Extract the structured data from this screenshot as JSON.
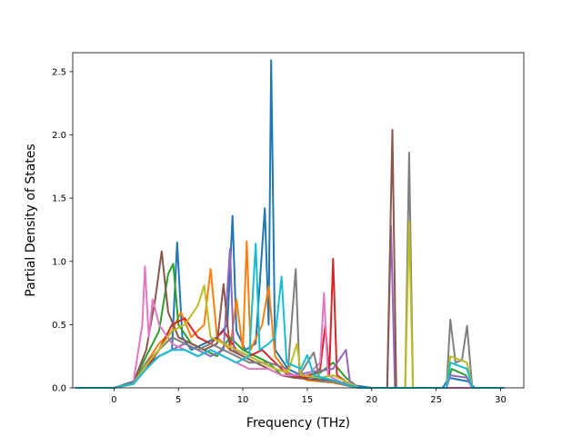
{
  "chart_data": {
    "type": "line",
    "title": "",
    "xlabel": "Frequency (THz)",
    "ylabel": "Partial Density of States",
    "xlim": [
      -3.2,
      31.8
    ],
    "ylim": [
      0,
      2.65
    ],
    "xticks": [
      0,
      5,
      10,
      15,
      20,
      25,
      30
    ],
    "yticks": [
      0.0,
      0.5,
      1.0,
      1.5,
      2.0,
      2.5
    ],
    "xtick_labels": [
      "0",
      "5",
      "10",
      "15",
      "20",
      "25",
      "30"
    ],
    "ytick_labels": [
      "0.0",
      "0.5",
      "1.0",
      "1.5",
      "2.0",
      "2.5"
    ],
    "grid": false,
    "legend": "none",
    "series": [
      {
        "color": "#1f77b4",
        "points": [
          [
            -3,
            0
          ],
          [
            0,
            0
          ],
          [
            1.5,
            0.05
          ],
          [
            2.5,
            0.18
          ],
          [
            3.5,
            0.25
          ],
          [
            4.5,
            0.3
          ],
          [
            4.9,
            1.15
          ],
          [
            5.3,
            0.4
          ],
          [
            6,
            0.3
          ],
          [
            7,
            0.35
          ],
          [
            8,
            0.4
          ],
          [
            8.8,
            0.5
          ],
          [
            9.2,
            1.36
          ],
          [
            9.5,
            0.45
          ],
          [
            10.2,
            0.3
          ],
          [
            11,
            0.35
          ],
          [
            11.7,
            1.42
          ],
          [
            12.0,
            0.5
          ],
          [
            12.2,
            2.59
          ],
          [
            12.5,
            0.3
          ],
          [
            13.5,
            0.15
          ],
          [
            14.5,
            0.1
          ],
          [
            15.5,
            0.08
          ],
          [
            17,
            0.05
          ],
          [
            18,
            0.03
          ],
          [
            20,
            0
          ],
          [
            25.5,
            0
          ],
          [
            26,
            0.08
          ],
          [
            27.5,
            0.05
          ],
          [
            28,
            0
          ],
          [
            30.3,
            0
          ]
        ]
      },
      {
        "color": "#ff7f0e",
        "points": [
          [
            -3,
            0
          ],
          [
            0,
            0
          ],
          [
            1.5,
            0.03
          ],
          [
            2.5,
            0.2
          ],
          [
            3.5,
            0.35
          ],
          [
            4.5,
            0.45
          ],
          [
            5.2,
            0.6
          ],
          [
            6,
            0.4
          ],
          [
            7,
            0.5
          ],
          [
            7.5,
            0.94
          ],
          [
            8,
            0.4
          ],
          [
            9,
            0.3
          ],
          [
            9.5,
            0.7
          ],
          [
            10,
            0.3
          ],
          [
            10.3,
            1.16
          ],
          [
            10.6,
            0.3
          ],
          [
            11.5,
            0.5
          ],
          [
            12,
            0.8
          ],
          [
            12.5,
            0.25
          ],
          [
            13.5,
            0.12
          ],
          [
            15,
            0.06
          ],
          [
            17,
            0.04
          ],
          [
            18,
            0.02
          ],
          [
            19,
            0
          ],
          [
            30.3,
            0
          ]
        ]
      },
      {
        "color": "#2ca02c",
        "points": [
          [
            -3,
            0
          ],
          [
            0,
            0
          ],
          [
            1.5,
            0.04
          ],
          [
            2.5,
            0.25
          ],
          [
            3.5,
            0.45
          ],
          [
            4.2,
            0.9
          ],
          [
            4.6,
            0.98
          ],
          [
            5.0,
            0.5
          ],
          [
            6,
            0.35
          ],
          [
            7,
            0.3
          ],
          [
            8,
            0.25
          ],
          [
            9,
            0.4
          ],
          [
            10,
            0.3
          ],
          [
            11,
            0.25
          ],
          [
            12,
            0.2
          ],
          [
            13,
            0.1
          ],
          [
            14,
            0.08
          ],
          [
            16,
            0.12
          ],
          [
            17,
            0.2
          ],
          [
            18,
            0.08
          ],
          [
            19,
            0
          ],
          [
            25.8,
            0
          ],
          [
            26.2,
            0.15
          ],
          [
            27.3,
            0.1
          ],
          [
            27.8,
            0
          ],
          [
            30.3,
            0
          ]
        ]
      },
      {
        "color": "#d62728",
        "points": [
          [
            -3,
            0
          ],
          [
            0,
            0
          ],
          [
            1.5,
            0.03
          ],
          [
            2.5,
            0.15
          ],
          [
            3.5,
            0.3
          ],
          [
            4.5,
            0.5
          ],
          [
            5.5,
            0.55
          ],
          [
            6.5,
            0.4
          ],
          [
            7.5,
            0.35
          ],
          [
            8.5,
            0.45
          ],
          [
            9.5,
            0.3
          ],
          [
            10.5,
            0.25
          ],
          [
            11.5,
            0.3
          ],
          [
            12.5,
            0.2
          ],
          [
            13.5,
            0.1
          ],
          [
            15,
            0.08
          ],
          [
            16,
            0.15
          ],
          [
            16.4,
            0.5
          ],
          [
            16.7,
            0.1
          ],
          [
            17.0,
            1.02
          ],
          [
            17.3,
            0.1
          ],
          [
            18,
            0.05
          ],
          [
            19,
            0
          ],
          [
            30.3,
            0
          ]
        ]
      },
      {
        "color": "#9467bd",
        "points": [
          [
            -3,
            0
          ],
          [
            0,
            0
          ],
          [
            1.5,
            0.03
          ],
          [
            2.5,
            0.15
          ],
          [
            3.5,
            0.25
          ],
          [
            4.5,
            0.3
          ],
          [
            5.5,
            0.35
          ],
          [
            6.5,
            0.3
          ],
          [
            7.5,
            0.25
          ],
          [
            8.5,
            0.3
          ],
          [
            9,
            1.1
          ],
          [
            9.3,
            0.3
          ],
          [
            10.5,
            0.25
          ],
          [
            11.5,
            0.2
          ],
          [
            12.5,
            0.15
          ],
          [
            14,
            0.1
          ],
          [
            15,
            0.12
          ],
          [
            17,
            0.15
          ],
          [
            18,
            0.3
          ],
          [
            18.3,
            0.05
          ],
          [
            19,
            0
          ],
          [
            21.2,
            0
          ],
          [
            21.5,
            1.28
          ],
          [
            21.8,
            0
          ],
          [
            25.8,
            0
          ],
          [
            26.1,
            0.1
          ],
          [
            27.4,
            0.08
          ],
          [
            27.8,
            0
          ],
          [
            30.3,
            0
          ]
        ]
      },
      {
        "color": "#8c564b",
        "points": [
          [
            -3,
            0
          ],
          [
            0,
            0
          ],
          [
            1.5,
            0.04
          ],
          [
            2.5,
            0.3
          ],
          [
            3.2,
            0.7
          ],
          [
            3.7,
            1.08
          ],
          [
            4.2,
            0.6
          ],
          [
            5,
            0.4
          ],
          [
            6,
            0.35
          ],
          [
            7,
            0.3
          ],
          [
            8,
            0.35
          ],
          [
            8.5,
            0.82
          ],
          [
            9,
            0.3
          ],
          [
            10,
            0.25
          ],
          [
            11,
            0.2
          ],
          [
            12,
            0.15
          ],
          [
            13,
            0.1
          ],
          [
            14,
            0.08
          ],
          [
            16,
            0.06
          ],
          [
            18,
            0.04
          ],
          [
            19,
            0
          ],
          [
            21.2,
            0
          ],
          [
            21.6,
            2.04
          ],
          [
            21.9,
            0
          ],
          [
            30.3,
            0
          ]
        ]
      },
      {
        "color": "#e377c2",
        "points": [
          [
            -3,
            0
          ],
          [
            0,
            0
          ],
          [
            1.5,
            0.04
          ],
          [
            2.2,
            0.5
          ],
          [
            2.4,
            0.96
          ],
          [
            2.7,
            0.4
          ],
          [
            3.0,
            0.7
          ],
          [
            3.5,
            0.5
          ],
          [
            4.5,
            0.35
          ],
          [
            5.5,
            0.3
          ],
          [
            6.5,
            0.25
          ],
          [
            7.5,
            0.3
          ],
          [
            8.5,
            0.25
          ],
          [
            9.5,
            0.2
          ],
          [
            10.5,
            0.15
          ],
          [
            12,
            0.15
          ],
          [
            13,
            0.1
          ],
          [
            15,
            0.1
          ],
          [
            16.0,
            0.2
          ],
          [
            16.3,
            0.75
          ],
          [
            16.6,
            0.1
          ],
          [
            17.5,
            0.05
          ],
          [
            19,
            0
          ],
          [
            30.3,
            0
          ]
        ]
      },
      {
        "color": "#7f7f7f",
        "points": [
          [
            -3,
            0
          ],
          [
            0,
            0
          ],
          [
            1.5,
            0.04
          ],
          [
            2.5,
            0.2
          ],
          [
            3.5,
            0.3
          ],
          [
            4.5,
            0.4
          ],
          [
            5.5,
            0.35
          ],
          [
            6.5,
            0.3
          ],
          [
            7.5,
            0.35
          ],
          [
            8.5,
            0.3
          ],
          [
            9.5,
            0.25
          ],
          [
            10.5,
            0.2
          ],
          [
            12,
            0.2
          ],
          [
            13.5,
            0.15
          ],
          [
            14.1,
            0.94
          ],
          [
            14.4,
            0.1
          ],
          [
            15,
            0.2
          ],
          [
            15.5,
            0.28
          ],
          [
            16,
            0.05
          ],
          [
            17,
            0.05
          ],
          [
            18,
            0.02
          ],
          [
            19,
            0
          ],
          [
            22.6,
            0
          ],
          [
            22.9,
            1.86
          ],
          [
            23.2,
            0
          ],
          [
            25.8,
            0
          ],
          [
            26.1,
            0.54
          ],
          [
            26.5,
            0.2
          ],
          [
            27.0,
            0.22
          ],
          [
            27.4,
            0.49
          ],
          [
            27.8,
            0
          ],
          [
            30.3,
            0
          ]
        ]
      },
      {
        "color": "#bcbd22",
        "points": [
          [
            -3,
            0
          ],
          [
            0,
            0
          ],
          [
            1.5,
            0.03
          ],
          [
            2.5,
            0.18
          ],
          [
            3.5,
            0.3
          ],
          [
            4.5,
            0.45
          ],
          [
            5.5,
            0.5
          ],
          [
            6.5,
            0.65
          ],
          [
            7,
            0.81
          ],
          [
            7.5,
            0.4
          ],
          [
            8.5,
            0.35
          ],
          [
            9.5,
            0.3
          ],
          [
            10.5,
            0.25
          ],
          [
            11.5,
            0.2
          ],
          [
            12.5,
            0.15
          ],
          [
            13.5,
            0.12
          ],
          [
            14.2,
            0.35
          ],
          [
            14.5,
            0.1
          ],
          [
            16,
            0.08
          ],
          [
            17,
            0.1
          ],
          [
            18,
            0.05
          ],
          [
            19,
            0
          ],
          [
            22.6,
            0
          ],
          [
            22.9,
            1.32
          ],
          [
            23.2,
            0
          ],
          [
            25.8,
            0
          ],
          [
            26.1,
            0.25
          ],
          [
            27.4,
            0.2
          ],
          [
            27.8,
            0
          ],
          [
            30.3,
            0
          ]
        ]
      },
      {
        "color": "#17becf",
        "points": [
          [
            -3,
            0
          ],
          [
            0,
            0
          ],
          [
            1.5,
            0.03
          ],
          [
            2.5,
            0.15
          ],
          [
            3.5,
            0.25
          ],
          [
            4.5,
            0.3
          ],
          [
            5.5,
            0.3
          ],
          [
            6.5,
            0.25
          ],
          [
            7.5,
            0.3
          ],
          [
            8.5,
            0.25
          ],
          [
            9.5,
            0.2
          ],
          [
            10.5,
            0.25
          ],
          [
            11.0,
            1.14
          ],
          [
            11.3,
            0.3
          ],
          [
            12,
            0.35
          ],
          [
            12.5,
            0.4
          ],
          [
            13,
            0.88
          ],
          [
            13.4,
            0.2
          ],
          [
            14.5,
            0.15
          ],
          [
            15,
            0.26
          ],
          [
            15.5,
            0.1
          ],
          [
            17,
            0.06
          ],
          [
            18,
            0.03
          ],
          [
            19,
            0
          ],
          [
            25.8,
            0
          ],
          [
            26.1,
            0.2
          ],
          [
            27.4,
            0.15
          ],
          [
            27.8,
            0
          ],
          [
            30.3,
            0
          ]
        ]
      }
    ]
  }
}
